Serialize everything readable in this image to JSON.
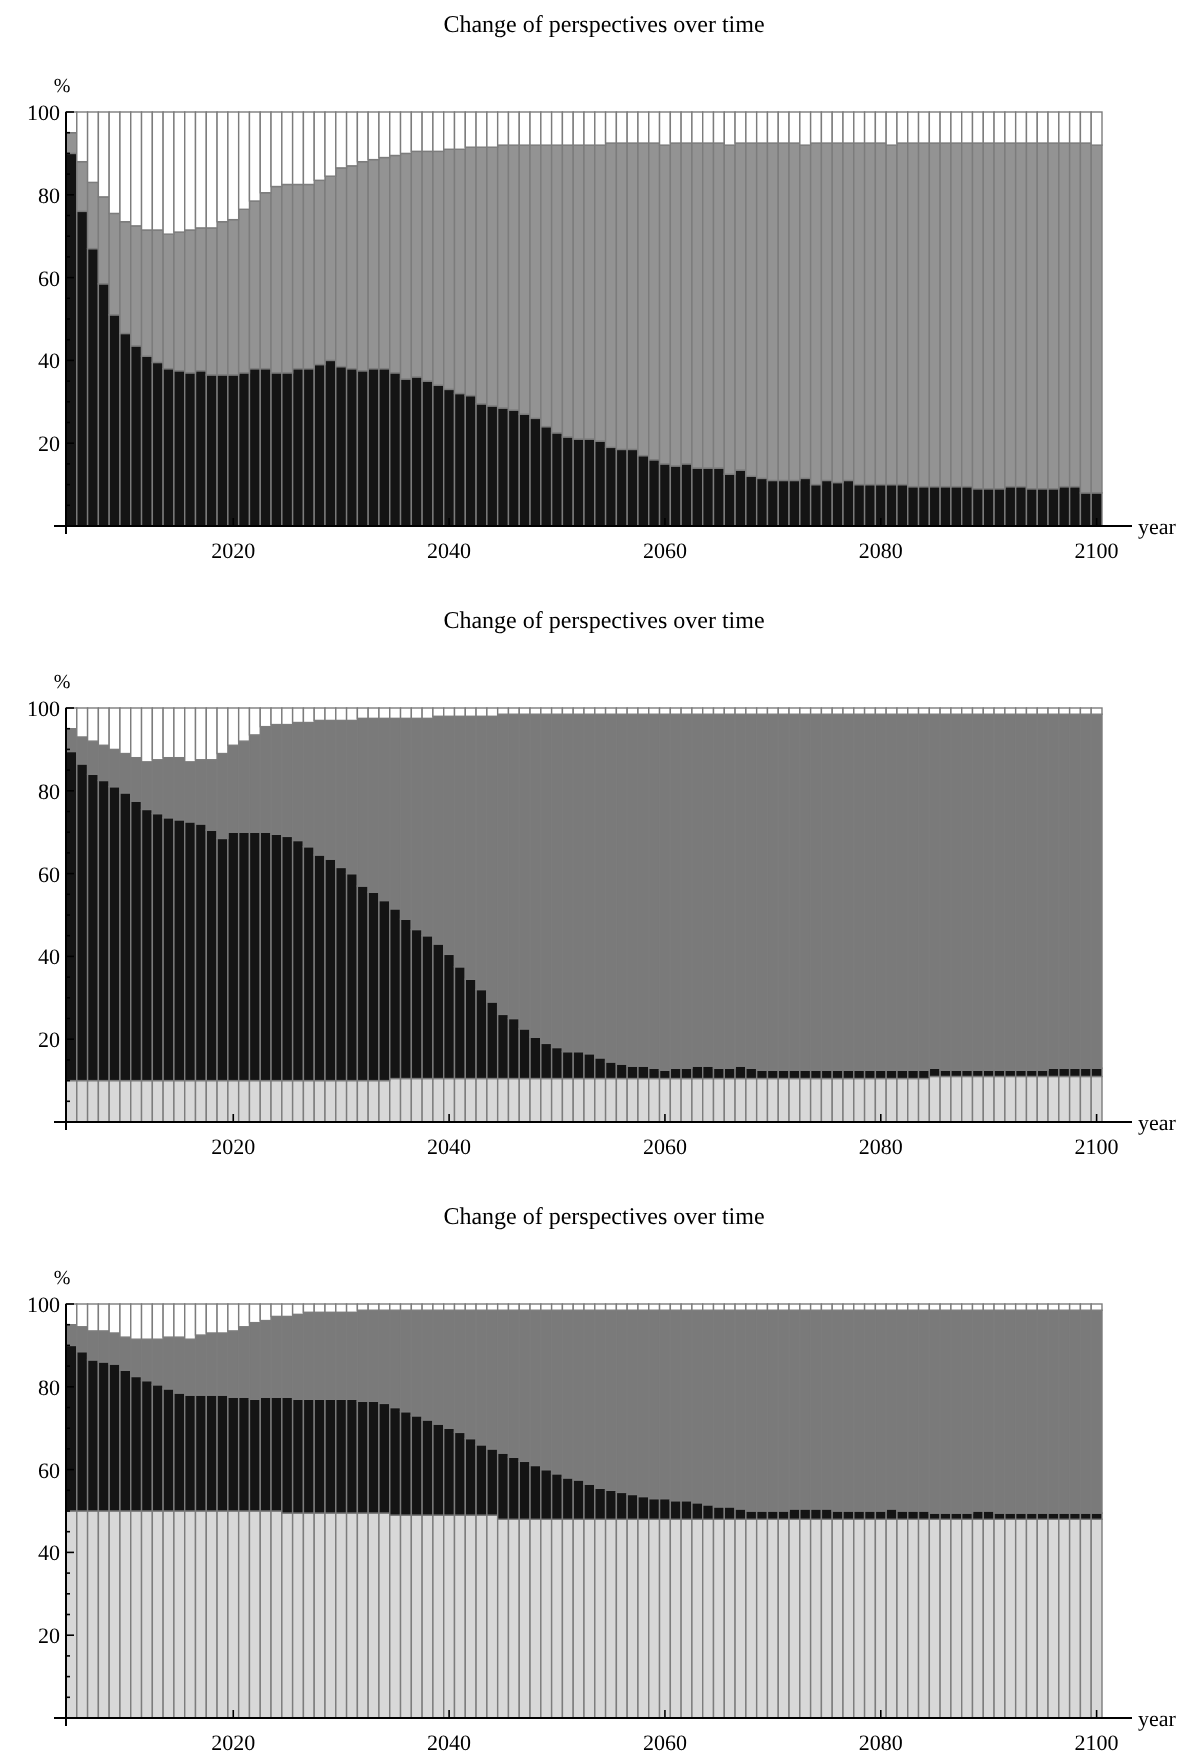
{
  "chart_data": [
    {
      "type": "bar",
      "stacked": true,
      "title": "Change of perspectives over time",
      "xlabel": "year",
      "ylabel": "%",
      "x": [
        2005,
        2006,
        2007,
        2008,
        2009,
        2010,
        2011,
        2012,
        2013,
        2014,
        2015,
        2016,
        2017,
        2018,
        2019,
        2020,
        2021,
        2022,
        2023,
        2024,
        2025,
        2026,
        2027,
        2028,
        2029,
        2030,
        2031,
        2032,
        2033,
        2034,
        2035,
        2036,
        2037,
        2038,
        2039,
        2040,
        2041,
        2042,
        2043,
        2044,
        2045,
        2046,
        2047,
        2048,
        2049,
        2050,
        2051,
        2052,
        2053,
        2054,
        2055,
        2056,
        2057,
        2058,
        2059,
        2060,
        2061,
        2062,
        2063,
        2064,
        2065,
        2066,
        2067,
        2068,
        2069,
        2070,
        2071,
        2072,
        2073,
        2074,
        2075,
        2076,
        2077,
        2078,
        2079,
        2080,
        2081,
        2082,
        2083,
        2084,
        2085,
        2086,
        2087,
        2088,
        2089,
        2090,
        2091,
        2092,
        2093,
        2094,
        2095,
        2096,
        2097,
        2098,
        2099,
        2100
      ],
      "xlim": [
        2004.5,
        2100.5
      ],
      "xticks": [
        2020,
        2040,
        2060,
        2080,
        2100
      ],
      "ylim": [
        0,
        100
      ],
      "yticks": [
        {
          "value": 0,
          "label": null
        },
        {
          "value": 5,
          "label": null
        },
        {
          "value": 10,
          "label": null
        },
        {
          "value": 15,
          "label": null
        },
        20,
        {
          "value": 25,
          "label": null
        },
        {
          "value": 30,
          "label": null
        },
        {
          "value": 35,
          "label": null
        },
        40,
        {
          "value": 45,
          "label": null
        },
        {
          "value": 50,
          "label": null
        },
        {
          "value": 55,
          "label": null
        },
        60,
        {
          "value": 65,
          "label": null
        },
        {
          "value": 70,
          "label": null
        },
        {
          "value": 75,
          "label": null
        },
        80,
        {
          "value": 85,
          "label": null
        },
        {
          "value": 90,
          "label": null
        },
        {
          "value": 95,
          "label": null
        },
        100
      ],
      "series": [
        {
          "color": "#141414",
          "values": [
            90,
            76,
            67,
            58.5,
            51,
            46.5,
            43.5,
            41,
            39.5,
            38,
            37.5,
            37,
            37.5,
            36.5,
            36.5,
            36.5,
            37,
            38,
            38,
            37,
            37,
            38,
            38,
            39,
            40,
            38.5,
            38,
            37.5,
            38,
            38,
            37,
            35.5,
            36,
            35,
            34,
            33,
            32,
            31.5,
            29.5,
            29,
            28.5,
            28,
            27,
            26,
            24,
            22.5,
            21.5,
            21,
            21,
            20.5,
            19,
            18.5,
            18.5,
            17,
            16,
            15,
            14.5,
            15,
            14,
            14,
            14,
            12.5,
            13.5,
            12,
            11.5,
            11,
            11,
            11,
            11.5,
            10,
            11,
            10.5,
            11,
            10,
            10,
            10,
            10,
            10,
            9.5,
            9.5,
            9.5,
            9.5,
            9.5,
            9.5,
            9,
            9,
            9,
            9.5,
            9.5,
            9,
            9,
            9,
            9.5,
            9.5,
            8,
            8
          ]
        },
        {
          "color": "#939393",
          "values": [
            5,
            12,
            16,
            21,
            24.5,
            27,
            29,
            30.5,
            32,
            32.5,
            33.5,
            34.5,
            34.5,
            35.5,
            37,
            37.5,
            39.5,
            40.5,
            42.5,
            45,
            45.5,
            44.5,
            44.5,
            44.5,
            44.5,
            48,
            49,
            50.5,
            50.5,
            51,
            52.5,
            54.5,
            54.5,
            55.5,
            56.5,
            58,
            59,
            60,
            62,
            62.5,
            63.5,
            64,
            65,
            66,
            68,
            69.5,
            70.5,
            71,
            71,
            71.5,
            73.5,
            74,
            74,
            75.5,
            76.5,
            77,
            78,
            77.5,
            78.5,
            78.5,
            78.5,
            79.5,
            79,
            80.5,
            81,
            81.5,
            81.5,
            81.5,
            80.5,
            82.5,
            81.5,
            82,
            81.5,
            82.5,
            82.5,
            82.5,
            82,
            82.5,
            83,
            83,
            83,
            83,
            83,
            83,
            83.5,
            83.5,
            83.5,
            83,
            83,
            83.5,
            83.5,
            83.5,
            83,
            83,
            84.5,
            84
          ]
        },
        {
          "color": "#ffffff",
          "values": [
            5,
            12,
            17,
            20.5,
            24.5,
            26.5,
            27.5,
            28.5,
            28.5,
            29.5,
            29,
            28.5,
            28,
            28,
            26.5,
            26,
            23.5,
            21.5,
            19.5,
            18,
            17.5,
            17.5,
            17.5,
            16.5,
            15.5,
            13.5,
            13,
            12,
            11.5,
            11,
            10.5,
            10,
            9.5,
            9.5,
            9.5,
            9,
            9,
            8.5,
            8.5,
            8.5,
            8,
            8,
            8,
            8,
            8,
            8,
            8,
            8,
            8,
            8,
            7.5,
            7.5,
            7.5,
            7.5,
            7.5,
            8,
            7.5,
            7.5,
            7.5,
            7.5,
            7.5,
            8,
            7.5,
            7.5,
            7.5,
            7.5,
            7.5,
            7.5,
            8,
            7.5,
            7.5,
            7.5,
            7.5,
            7.5,
            7.5,
            7.5,
            8,
            7.5,
            7.5,
            7.5,
            7.5,
            7.5,
            7.5,
            7.5,
            7.5,
            7.5,
            7.5,
            7.5,
            7.5,
            7.5,
            7.5,
            7.5,
            7.5,
            7.5,
            7.5,
            8
          ]
        }
      ]
    },
    {
      "type": "bar",
      "stacked": true,
      "title": "Change of perspectives over time",
      "xlabel": "year",
      "ylabel": "%",
      "x": [
        2005,
        2006,
        2007,
        2008,
        2009,
        2010,
        2011,
        2012,
        2013,
        2014,
        2015,
        2016,
        2017,
        2018,
        2019,
        2020,
        2021,
        2022,
        2023,
        2024,
        2025,
        2026,
        2027,
        2028,
        2029,
        2030,
        2031,
        2032,
        2033,
        2034,
        2035,
        2036,
        2037,
        2038,
        2039,
        2040,
        2041,
        2042,
        2043,
        2044,
        2045,
        2046,
        2047,
        2048,
        2049,
        2050,
        2051,
        2052,
        2053,
        2054,
        2055,
        2056,
        2057,
        2058,
        2059,
        2060,
        2061,
        2062,
        2063,
        2064,
        2065,
        2066,
        2067,
        2068,
        2069,
        2070,
        2071,
        2072,
        2073,
        2074,
        2075,
        2076,
        2077,
        2078,
        2079,
        2080,
        2081,
        2082,
        2083,
        2084,
        2085,
        2086,
        2087,
        2088,
        2089,
        2090,
        2091,
        2092,
        2093,
        2094,
        2095,
        2096,
        2097,
        2098,
        2099,
        2100
      ],
      "xlim": [
        2004.5,
        2100.5
      ],
      "xticks": [
        2020,
        2040,
        2060,
        2080,
        2100
      ],
      "ylim": [
        0,
        100
      ],
      "yticks": [
        {
          "value": 0,
          "label": null
        },
        {
          "value": 5,
          "label": null
        },
        {
          "value": 10,
          "label": null
        },
        {
          "value": 15,
          "label": null
        },
        20,
        {
          "value": 25,
          "label": null
        },
        {
          "value": 30,
          "label": null
        },
        {
          "value": 35,
          "label": null
        },
        40,
        {
          "value": 45,
          "label": null
        },
        {
          "value": 50,
          "label": null
        },
        {
          "value": 55,
          "label": null
        },
        60,
        {
          "value": 65,
          "label": null
        },
        {
          "value": 70,
          "label": null
        },
        {
          "value": 75,
          "label": null
        },
        80,
        {
          "value": 85,
          "label": null
        },
        {
          "value": 90,
          "label": null
        },
        {
          "value": 95,
          "label": null
        },
        100
      ],
      "series": [
        {
          "color": "#d8d8d8",
          "values": [
            10,
            10,
            10,
            10,
            10,
            10,
            10,
            10,
            10,
            10,
            10,
            10,
            10,
            10,
            10,
            10,
            10,
            10,
            10,
            10,
            10,
            10,
            10,
            10,
            10,
            10,
            10,
            10,
            10,
            10,
            10.5,
            10.5,
            10.5,
            10.5,
            10.5,
            10.5,
            10.5,
            10.5,
            10.5,
            10.5,
            10.5,
            10.5,
            10.5,
            10.5,
            10.5,
            10.5,
            10.5,
            10.5,
            10.5,
            10.5,
            10.5,
            10.5,
            10.5,
            10.5,
            10.5,
            10.5,
            10.5,
            10.5,
            10.5,
            10.5,
            10.5,
            10.5,
            10.5,
            10.5,
            10.5,
            10.5,
            10.5,
            10.5,
            10.5,
            10.5,
            10.5,
            10.5,
            10.5,
            10.5,
            10.5,
            10.5,
            10.5,
            10.5,
            10.5,
            10.5,
            11,
            11,
            11,
            11,
            11,
            11,
            11,
            11,
            11,
            11,
            11,
            11,
            11,
            11,
            11,
            11
          ]
        },
        {
          "color": "#141414",
          "values": [
            79.5,
            76.5,
            74,
            72.5,
            71,
            69.5,
            67.5,
            65.5,
            64.5,
            63.5,
            63,
            62.5,
            62,
            60.5,
            58.5,
            60,
            60,
            60,
            60,
            59.5,
            59,
            58,
            56.5,
            54.5,
            53.5,
            51.5,
            50,
            47,
            45.5,
            43.5,
            41,
            38.5,
            36,
            34.5,
            32.5,
            30,
            27,
            24,
            21.5,
            18.5,
            15.5,
            14.5,
            12,
            10,
            8.5,
            7.5,
            6.5,
            6.5,
            6,
            5,
            4,
            3.5,
            3,
            3,
            2.5,
            2,
            2.5,
            2.5,
            3,
            3,
            2.5,
            2.5,
            3,
            2.5,
            2,
            2,
            2,
            2,
            2,
            2,
            2,
            2,
            2,
            2,
            2,
            2,
            2,
            2,
            2,
            2,
            2,
            1.5,
            1.5,
            1.5,
            1.5,
            1.5,
            1.5,
            1.5,
            1.5,
            1.5,
            1.5,
            2,
            2,
            2,
            2,
            2
          ]
        },
        {
          "color": "#7a7a7a",
          "values": [
            5.5,
            6.5,
            8,
            8.5,
            9,
            9.5,
            10.5,
            11.5,
            13,
            14.5,
            15,
            14.5,
            15.5,
            17,
            20.5,
            21,
            22,
            23.5,
            25.5,
            26.5,
            27,
            28.5,
            30,
            32.5,
            33.5,
            35.5,
            37,
            40.5,
            42,
            44,
            46,
            48.5,
            51,
            52.5,
            55,
            57.5,
            60.5,
            63.5,
            66,
            69,
            72.5,
            73.5,
            76,
            78,
            79.5,
            80.5,
            81.5,
            81.5,
            82,
            83,
            84,
            84.5,
            85,
            85,
            85.5,
            86,
            85.5,
            85.5,
            85,
            85,
            85.5,
            85.5,
            85,
            85.5,
            86,
            86,
            86,
            86,
            86,
            86,
            86,
            86,
            86,
            86,
            86,
            86,
            86,
            86,
            86,
            86,
            85.5,
            86,
            86,
            86,
            86,
            86,
            86,
            86,
            86,
            86,
            86,
            85.5,
            85.5,
            85.5,
            85.5,
            85.5
          ]
        },
        {
          "color": "#ffffff",
          "values": [
            5,
            7,
            8,
            9,
            10,
            11,
            12,
            13,
            12.5,
            12,
            12,
            13,
            12.5,
            12.5,
            11,
            9,
            8,
            6.5,
            4.5,
            4,
            4,
            3.5,
            3.5,
            3,
            3,
            3,
            3,
            2.5,
            2.5,
            2.5,
            2.5,
            2.5,
            2.5,
            2.5,
            2,
            2,
            2,
            2,
            2,
            2,
            1.5,
            1.5,
            1.5,
            1.5,
            1.5,
            1.5,
            1.5,
            1.5,
            1.5,
            1.5,
            1.5,
            1.5,
            1.5,
            1.5,
            1.5,
            1.5,
            1.5,
            1.5,
            1.5,
            1.5,
            1.5,
            1.5,
            1.5,
            1.5,
            1.5,
            1.5,
            1.5,
            1.5,
            1.5,
            1.5,
            1.5,
            1.5,
            1.5,
            1.5,
            1.5,
            1.5,
            1.5,
            1.5,
            1.5,
            1.5,
            1.5,
            1.5,
            1.5,
            1.5,
            1.5,
            1.5,
            1.5,
            1.5,
            1.5,
            1.5,
            1.5,
            1.5,
            1.5,
            1.5,
            1.5,
            1.5
          ]
        }
      ]
    },
    {
      "type": "bar",
      "stacked": true,
      "title": "Change of perspectives over time",
      "xlabel": "year",
      "ylabel": "%",
      "x": [
        2005,
        2006,
        2007,
        2008,
        2009,
        2010,
        2011,
        2012,
        2013,
        2014,
        2015,
        2016,
        2017,
        2018,
        2019,
        2020,
        2021,
        2022,
        2023,
        2024,
        2025,
        2026,
        2027,
        2028,
        2029,
        2030,
        2031,
        2032,
        2033,
        2034,
        2035,
        2036,
        2037,
        2038,
        2039,
        2040,
        2041,
        2042,
        2043,
        2044,
        2045,
        2046,
        2047,
        2048,
        2049,
        2050,
        2051,
        2052,
        2053,
        2054,
        2055,
        2056,
        2057,
        2058,
        2059,
        2060,
        2061,
        2062,
        2063,
        2064,
        2065,
        2066,
        2067,
        2068,
        2069,
        2070,
        2071,
        2072,
        2073,
        2074,
        2075,
        2076,
        2077,
        2078,
        2079,
        2080,
        2081,
        2082,
        2083,
        2084,
        2085,
        2086,
        2087,
        2088,
        2089,
        2090,
        2091,
        2092,
        2093,
        2094,
        2095,
        2096,
        2097,
        2098,
        2099,
        2100
      ],
      "xlim": [
        2004.5,
        2100.5
      ],
      "xticks": [
        2020,
        2040,
        2060,
        2080,
        2100
      ],
      "ylim": [
        0,
        100
      ],
      "yticks": [
        {
          "value": 0,
          "label": null
        },
        {
          "value": 5,
          "label": null
        },
        {
          "value": 10,
          "label": null
        },
        {
          "value": 15,
          "label": null
        },
        20,
        {
          "value": 25,
          "label": null
        },
        {
          "value": 30,
          "label": null
        },
        {
          "value": 35,
          "label": null
        },
        40,
        {
          "value": 45,
          "label": null
        },
        {
          "value": 50,
          "label": null
        },
        {
          "value": 55,
          "label": null
        },
        60,
        {
          "value": 65,
          "label": null
        },
        {
          "value": 70,
          "label": null
        },
        {
          "value": 75,
          "label": null
        },
        80,
        {
          "value": 85,
          "label": null
        },
        {
          "value": 90,
          "label": null
        },
        {
          "value": 95,
          "label": null
        },
        100
      ],
      "series": [
        {
          "color": "#d8d8d8",
          "values": [
            50,
            50,
            50,
            50,
            50,
            50,
            50,
            50,
            50,
            50,
            50,
            50,
            50,
            50,
            50,
            50,
            50,
            50,
            50,
            50,
            49.5,
            49.5,
            49.5,
            49.5,
            49.5,
            49.5,
            49.5,
            49.5,
            49.5,
            49.5,
            49,
            49,
            49,
            49,
            49,
            49,
            49,
            49,
            49,
            49,
            48,
            48,
            48,
            48,
            48,
            48,
            48,
            48,
            48,
            48,
            48,
            48,
            48,
            48,
            48,
            48,
            48,
            48,
            48,
            48,
            48,
            48,
            48,
            48,
            48,
            48,
            48,
            48,
            48,
            48,
            48,
            48,
            48,
            48,
            48,
            48,
            48,
            48,
            48,
            48,
            48,
            48,
            48,
            48,
            48,
            48,
            48,
            48,
            48,
            48,
            48,
            48,
            48,
            48,
            48,
            48
          ]
        },
        {
          "color": "#141414",
          "values": [
            40,
            38.5,
            36.5,
            36,
            35.5,
            34,
            32.5,
            31.5,
            30.5,
            29.5,
            28.5,
            28,
            28,
            28,
            28,
            27.5,
            27.5,
            27,
            27.5,
            27.5,
            28,
            27.5,
            27.5,
            27.5,
            27.5,
            27.5,
            27.5,
            27,
            27,
            26.5,
            26,
            25,
            24,
            23,
            22,
            21,
            20,
            18.5,
            17,
            16,
            16,
            15,
            14,
            13,
            12,
            11,
            10,
            9.5,
            8.5,
            7.5,
            7,
            6.5,
            6,
            5.5,
            5,
            5,
            4.5,
            4.5,
            4,
            3.5,
            3,
            3,
            2.5,
            2,
            2,
            2,
            2,
            2.5,
            2.5,
            2.5,
            2.5,
            2,
            2,
            2,
            2,
            2,
            2.5,
            2,
            2,
            2,
            1.5,
            1.5,
            1.5,
            1.5,
            2,
            2,
            1.5,
            1.5,
            1.5,
            1.5,
            1.5,
            1.5,
            1.5,
            1.5,
            1.5,
            1.5
          ]
        },
        {
          "color": "#7a7a7a",
          "values": [
            5,
            6,
            7,
            7.5,
            7.5,
            8,
            9,
            10,
            11,
            12.5,
            13.5,
            13.5,
            14.5,
            15,
            15,
            16,
            17,
            18.5,
            18.5,
            19.5,
            19.5,
            20.5,
            21,
            21,
            21,
            21,
            21,
            22,
            22,
            22.5,
            23.5,
            24.5,
            25.5,
            26.5,
            27.5,
            28.5,
            29.5,
            31,
            32.5,
            33.5,
            34.5,
            35.5,
            36.5,
            37.5,
            38.5,
            39.5,
            40.5,
            41,
            42,
            43,
            43.5,
            44,
            44.5,
            45,
            45.5,
            45.5,
            46,
            46,
            46.5,
            47,
            47.5,
            47.5,
            48,
            48.5,
            48.5,
            48.5,
            48.5,
            48,
            48,
            48,
            48,
            48.5,
            48.5,
            48.5,
            48.5,
            48.5,
            48,
            48.5,
            48.5,
            48.5,
            49,
            49,
            49,
            49,
            48.5,
            48.5,
            49,
            49,
            49,
            49,
            49,
            49,
            49,
            49,
            49,
            49
          ]
        },
        {
          "color": "#ffffff",
          "values": [
            5,
            5.5,
            6.5,
            6.5,
            7,
            8,
            8.5,
            8.5,
            8.5,
            8,
            8,
            8.5,
            7.5,
            7,
            7,
            6.5,
            5.5,
            4.5,
            4,
            3,
            3,
            2.5,
            2,
            2,
            2,
            2,
            2,
            1.5,
            1.5,
            1.5,
            1.5,
            1.5,
            1.5,
            1.5,
            1.5,
            1.5,
            1.5,
            1.5,
            1.5,
            1.5,
            1.5,
            1.5,
            1.5,
            1.5,
            1.5,
            1.5,
            1.5,
            1.5,
            1.5,
            1.5,
            1.5,
            1.5,
            1.5,
            1.5,
            1.5,
            1.5,
            1.5,
            1.5,
            1.5,
            1.5,
            1.5,
            1.5,
            1.5,
            1.5,
            1.5,
            1.5,
            1.5,
            1.5,
            1.5,
            1.5,
            1.5,
            1.5,
            1.5,
            1.5,
            1.5,
            1.5,
            1.5,
            1.5,
            1.5,
            1.5,
            1.5,
            1.5,
            1.5,
            1.5,
            1.5,
            1.5,
            1.5,
            1.5,
            1.5,
            1.5,
            1.5,
            1.5,
            1.5,
            1.5,
            1.5,
            1.5
          ]
        }
      ]
    }
  ]
}
